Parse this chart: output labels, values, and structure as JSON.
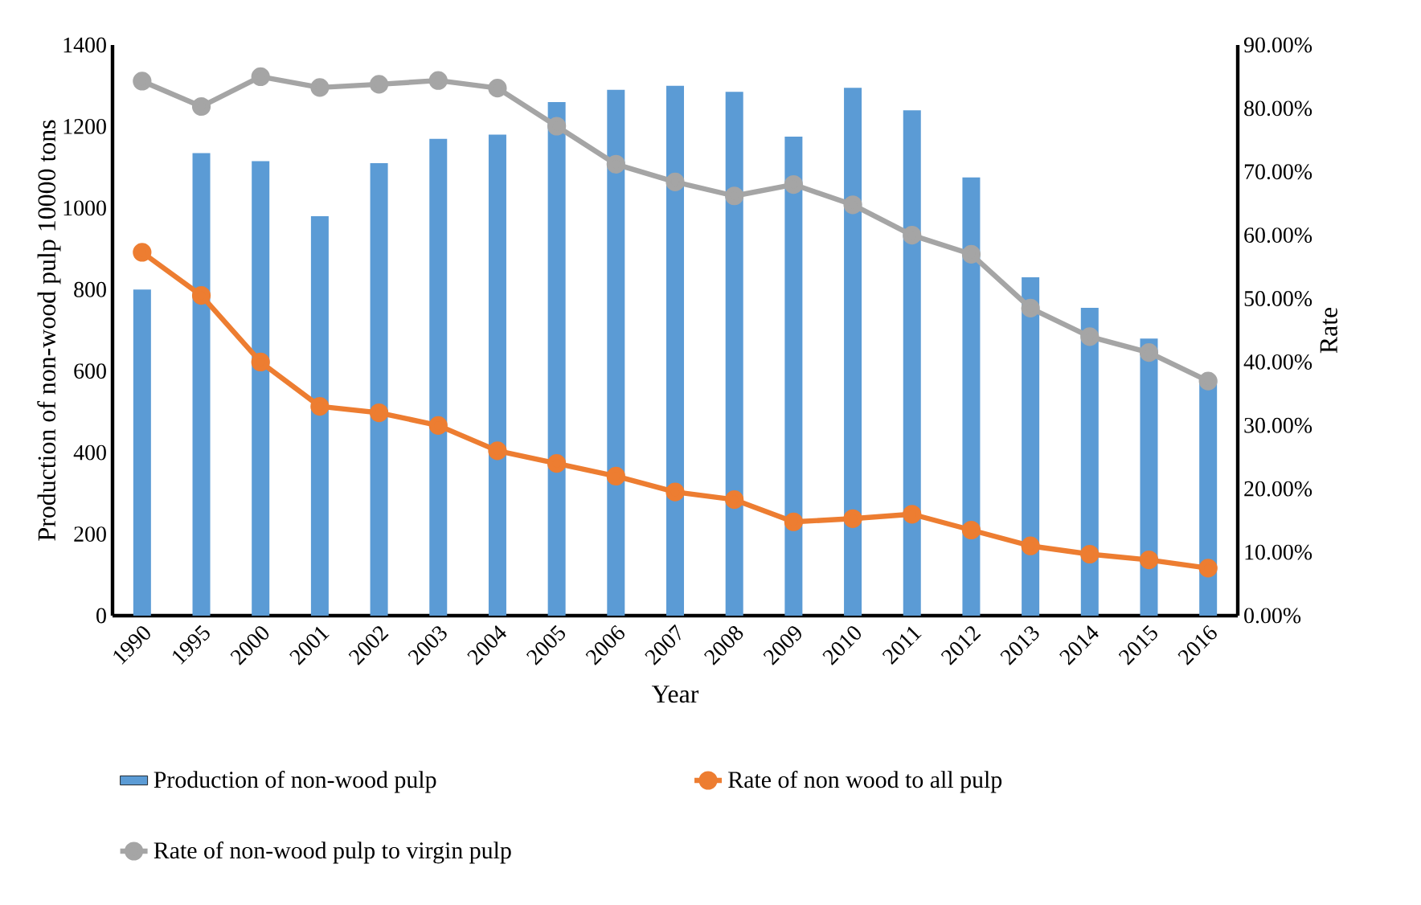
{
  "chart_data": {
    "type": "bar",
    "xlabel": "Year",
    "ylabel": "Production of non-wood pulp 10000 tons",
    "y2label": "Rate",
    "categories": [
      "1990",
      "1995",
      "2000",
      "2001",
      "2002",
      "2003",
      "2004",
      "2005",
      "2006",
      "2007",
      "2008",
      "2009",
      "2010",
      "2011",
      "2012",
      "2013",
      "2014",
      "2015",
      "2016"
    ],
    "series": [
      {
        "name": "Production of non-wood pulp",
        "color": "#5b9bd5",
        "values": [
          800,
          1135,
          1115,
          980,
          1110,
          1170,
          1180,
          1260,
          1290,
          1300,
          1285,
          1175,
          1295,
          1240,
          1075,
          830,
          755,
          680,
          575
        ]
      },
      {
        "name": "Rate of non wood to all pulp",
        "type": "line",
        "axis": "y2",
        "color": "#ed7d31",
        "marker": "circle",
        "values": [
          57.3,
          50.5,
          40,
          33,
          32,
          30,
          26,
          24,
          22,
          19.5,
          18.3,
          14.8,
          15.3,
          16,
          13.5,
          11,
          9.7,
          8.8,
          7.5
        ]
      },
      {
        "name": "Rate of non-wood pulp to virgin pulp",
        "type": "line",
        "axis": "y2",
        "color": "#a5a5a5",
        "marker": "circle",
        "values": [
          84.3,
          80.3,
          85,
          83.3,
          83.8,
          84.4,
          83.2,
          77.2,
          71.2,
          68.4,
          66.2,
          68,
          64.8,
          60,
          57,
          48.5,
          44,
          41.5,
          37
        ]
      }
    ],
    "ylim": [
      0,
      1400
    ],
    "yticks": [
      0,
      200,
      400,
      600,
      800,
      1000,
      1200,
      1400
    ],
    "y2lim": [
      0,
      90
    ],
    "y2ticks": [
      {
        "value": 0,
        "label": "0.00%"
      },
      {
        "value": 10,
        "label": "10.00%"
      },
      {
        "value": 20,
        "label": "20.00%"
      },
      {
        "value": 30,
        "label": "30.00%"
      },
      {
        "value": 40,
        "label": "40.00%"
      },
      {
        "value": 50,
        "label": "50.00%"
      },
      {
        "value": 60,
        "label": "60.00%"
      },
      {
        "value": 70,
        "label": "70.00%"
      },
      {
        "value": 80,
        "label": "80.00%"
      },
      {
        "value": 90,
        "label": "90.00%"
      }
    ],
    "legend": "bottom"
  }
}
